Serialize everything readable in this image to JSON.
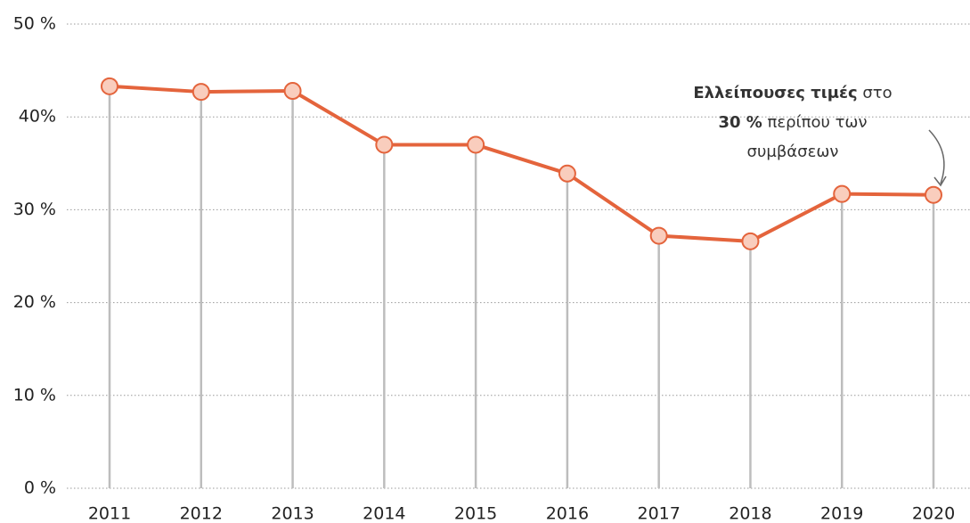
{
  "chart_data": {
    "type": "line",
    "categories": [
      "2011",
      "2012",
      "2013",
      "2014",
      "2015",
      "2016",
      "2017",
      "2018",
      "2019",
      "2020"
    ],
    "series": [
      {
        "color": "#e4643c",
        "marker_fill": "#f9cdbd",
        "values": [
          43.3,
          42.7,
          42.8,
          37.0,
          37.0,
          33.9,
          27.2,
          26.6,
          31.7,
          31.6
        ]
      }
    ],
    "ylim": [
      0,
      50
    ],
    "yticks": [
      {
        "value": 0,
        "label": "0 %"
      },
      {
        "value": 10,
        "label": "10 %"
      },
      {
        "value": 20,
        "label": "20 %"
      },
      {
        "value": 30,
        "label": "30 %"
      },
      {
        "value": 40,
        "label": "40%"
      },
      {
        "value": 50,
        "label": "50 %"
      }
    ],
    "grid": true,
    "annotation": [
      [
        {
          "text": "Ελλείπουσες τιμές",
          "bold": true
        },
        {
          "text": " στο",
          "bold": false
        }
      ],
      [
        {
          "text": "30 %",
          "bold": true
        },
        {
          "text": " περίπου των",
          "bold": false
        }
      ],
      [
        {
          "text": "συμβάσεων",
          "bold": false
        }
      ]
    ]
  }
}
